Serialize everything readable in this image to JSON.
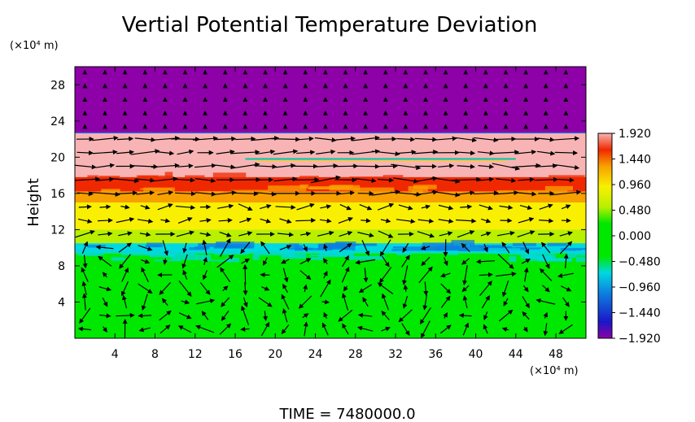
{
  "chart_data": {
    "type": "heatmap",
    "title": "Vertial Potential Temperature Deviation",
    "ylabel": "Height",
    "y_unit": "(×10⁴ m)",
    "x_unit": "(×10⁴ m)",
    "footer": "TIME = 7480000.0",
    "xlim": [
      0,
      51
    ],
    "ylim": [
      0,
      30
    ],
    "x_ticks": [
      4,
      8,
      12,
      16,
      20,
      24,
      28,
      32,
      36,
      40,
      44,
      48
    ],
    "y_ticks": [
      4,
      8,
      12,
      16,
      20,
      24,
      28
    ],
    "colorbar": {
      "min": -1.92,
      "max": 1.92,
      "labels": [
        "1.920",
        "1.440",
        "0.960",
        "0.480",
        "0.000",
        "−0.480",
        "−0.960",
        "−1.440",
        "−1.920"
      ],
      "colors": [
        "#8e00a8",
        "#1a16c8",
        "#0d7fe0",
        "#00d8e0",
        "#00e800",
        "#00e800",
        "#b8f000",
        "#f8f000",
        "#f8a000",
        "#f02800",
        "#f8b4b4"
      ]
    },
    "layers": [
      {
        "from": 22.7,
        "to": 30,
        "value": -1.92,
        "label": "purple top"
      },
      {
        "from": 17.8,
        "to": 22.7,
        "value": 1.92,
        "label": "pink upper band"
      },
      {
        "from": 16.2,
        "to": 17.8,
        "value": 1.44,
        "label": "red/orange band"
      },
      {
        "from": 15.0,
        "to": 16.2,
        "value": 0.96,
        "label": "orange/yellow band"
      },
      {
        "from": 12.0,
        "to": 15.0,
        "value": 0.72,
        "label": "yellow band"
      },
      {
        "from": 10.5,
        "to": 12.0,
        "value": 0.35,
        "label": "yellow-green band"
      },
      {
        "from": 9.4,
        "to": 10.5,
        "value": -0.6,
        "label": "cyan band"
      },
      {
        "from": 0,
        "to": 9.4,
        "value": 0.0,
        "label": "green lower"
      }
    ],
    "vectors": "wind arrows over the whole domain"
  }
}
